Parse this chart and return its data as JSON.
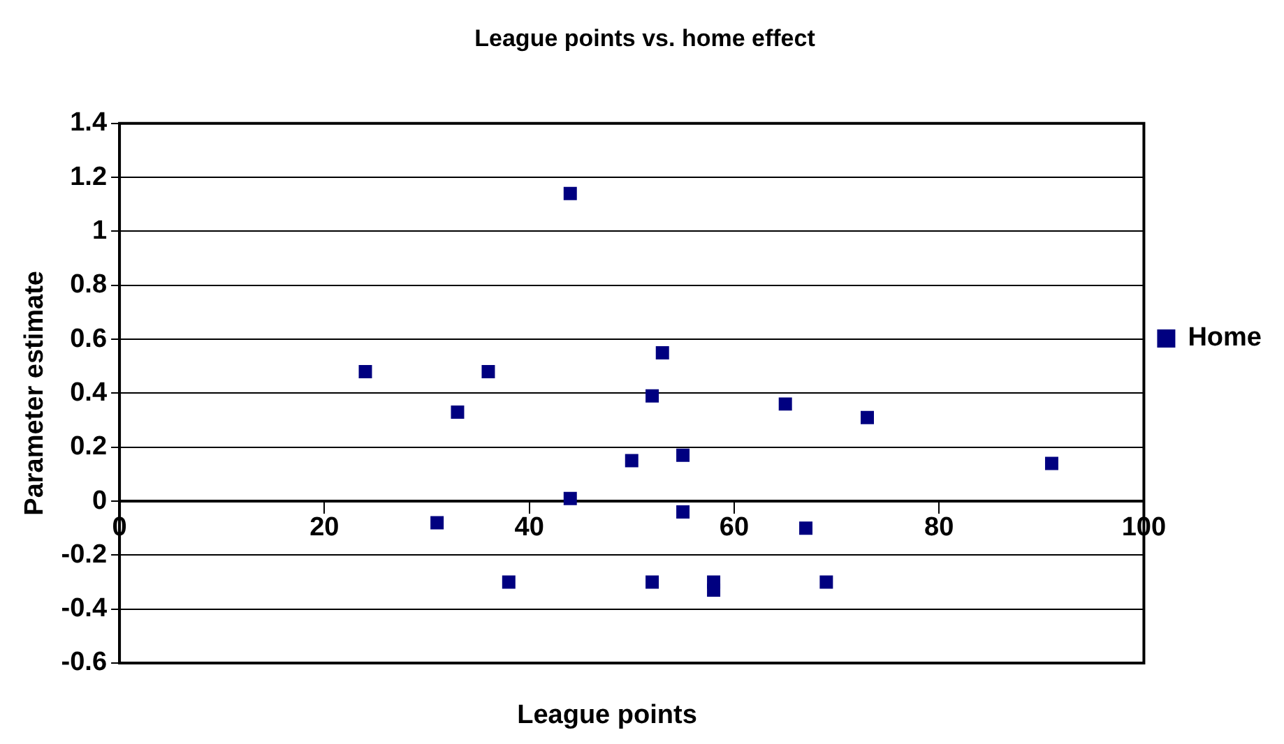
{
  "chart_data": {
    "type": "scatter",
    "title": "League points vs. home effect",
    "xlabel": "League points",
    "ylabel": "Parameter estimate",
    "xlim": [
      0,
      100
    ],
    "xticks": [
      0,
      20,
      40,
      60,
      80,
      100
    ],
    "ylim": [
      -0.6,
      1.4
    ],
    "yticks": [
      -0.6,
      -0.4,
      -0.2,
      0,
      0.2,
      0.4,
      0.6,
      0.8,
      1,
      1.2,
      1.4
    ],
    "grid": "y",
    "legend": "right",
    "marker": "square",
    "series": [
      {
        "name": "Home",
        "color": "#000080",
        "x": [
          24,
          36,
          33,
          44,
          44,
          31,
          38,
          53,
          52,
          65,
          73,
          50,
          55,
          91,
          55,
          67,
          52,
          58,
          58,
          69
        ],
        "values": [
          0.48,
          0.48,
          0.33,
          1.14,
          0.01,
          -0.08,
          -0.3,
          0.55,
          0.39,
          0.36,
          0.31,
          0.15,
          0.17,
          0.14,
          -0.04,
          -0.1,
          -0.3,
          -0.3,
          -0.33,
          -0.3
        ]
      }
    ]
  }
}
